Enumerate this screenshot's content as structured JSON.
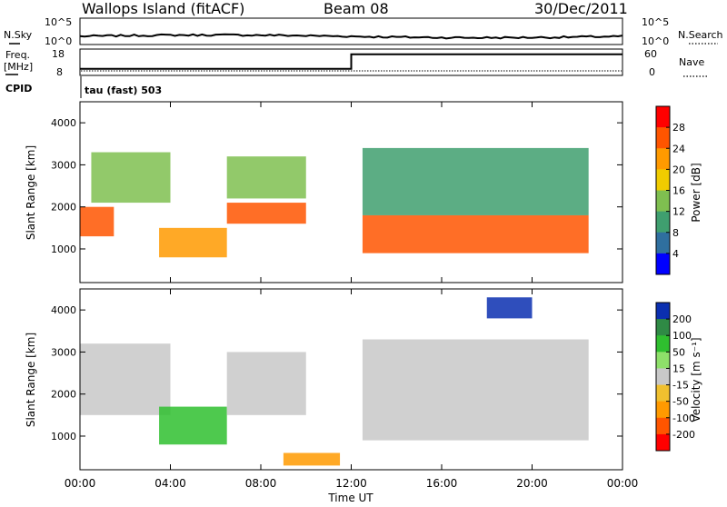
{
  "header": {
    "station": "Wallops Island (fitACF)",
    "beam": "Beam 08",
    "date": "30/Dec/2011"
  },
  "noise_panel": {
    "left_label": "N.Sky",
    "left_ticks": [
      "10^5",
      "10^0"
    ],
    "right_label": "N.Search",
    "right_ticks": [
      "10^5",
      "10^0"
    ]
  },
  "freq_panel": {
    "left_label_1": "Freq.",
    "left_label_2": "[MHz]",
    "left_ticks": [
      "18",
      "8"
    ],
    "right_label": "Nave",
    "right_ticks": [
      "60",
      "0"
    ],
    "cpid_label": "CPID",
    "cpid_value": "tau (fast) 503"
  },
  "time_axis": {
    "label": "Time UT",
    "ticks": [
      "00:00",
      "04:00",
      "08:00",
      "12:00",
      "16:00",
      "20:00",
      "00:00"
    ]
  },
  "range_axis": {
    "label": "Slant Range [km]",
    "ticks": [
      "1000",
      "2000",
      "3000",
      "4000"
    ]
  },
  "power_colorbar": {
    "label": "Power [dB]",
    "ticks": [
      "28",
      "24",
      "20",
      "16",
      "12",
      "8",
      "4"
    ],
    "colors": [
      "#ff0000",
      "#ff5500",
      "#ff9a00",
      "#f0cc00",
      "#7fbf50",
      "#3f9f6f",
      "#2f6f9f",
      "#0000ff"
    ]
  },
  "velocity_colorbar": {
    "label": "Velocity [m s⁻¹]",
    "ticks": [
      "200",
      "100",
      "50",
      "15",
      "-15",
      "-50",
      "-100",
      "-200"
    ],
    "colors": [
      "#0b2fb0",
      "#2f8a45",
      "#2fbf2f",
      "#8ee06a",
      "#c8c8c8",
      "#f0c02f",
      "#ff9a00",
      "#ff5500",
      "#ff0000"
    ]
  },
  "chart_data": {
    "type": "heatmap",
    "x_units": "UT hours",
    "xlim": [
      0,
      24
    ],
    "ylim": [
      200,
      4500
    ],
    "freq_steps": [
      {
        "t0": 0,
        "t1": 12,
        "mhz": 10.5
      },
      {
        "t0": 12,
        "t1": 24,
        "mhz": 16
      }
    ],
    "power_bands": [
      {
        "t0": 0.0,
        "t1": 1.5,
        "r0": 1300,
        "r1": 2000,
        "db": 26
      },
      {
        "t0": 0.5,
        "t1": 4.0,
        "r0": 2100,
        "r1": 3300,
        "db": 16
      },
      {
        "t0": 3.5,
        "t1": 6.5,
        "r0": 800,
        "r1": 1500,
        "db": 24
      },
      {
        "t0": 6.5,
        "t1": 10.0,
        "r0": 1600,
        "r1": 2100,
        "db": 28
      },
      {
        "t0": 6.5,
        "t1": 10.0,
        "r0": 2200,
        "r1": 3200,
        "db": 14
      },
      {
        "t0": 12.5,
        "t1": 22.5,
        "r0": 900,
        "r1": 1800,
        "db": 28
      },
      {
        "t0": 12.5,
        "t1": 22.5,
        "r0": 1800,
        "r1": 3400,
        "db": 12
      }
    ],
    "velocity_bands": [
      {
        "t0": 0.0,
        "t1": 4.0,
        "r0": 1500,
        "r1": 3200,
        "v": 0
      },
      {
        "t0": 3.5,
        "t1": 6.5,
        "r0": 800,
        "r1": 1700,
        "v": 50
      },
      {
        "t0": 6.5,
        "t1": 10.0,
        "r0": 1500,
        "r1": 3000,
        "v": 0
      },
      {
        "t0": 9.0,
        "t1": 11.5,
        "r0": 300,
        "r1": 600,
        "v": -100
      },
      {
        "t0": 12.5,
        "t1": 22.5,
        "r0": 900,
        "r1": 3300,
        "v": 0
      },
      {
        "t0": 18.0,
        "t1": 20.0,
        "r0": 3800,
        "r1": 4300,
        "v": 200
      }
    ]
  }
}
